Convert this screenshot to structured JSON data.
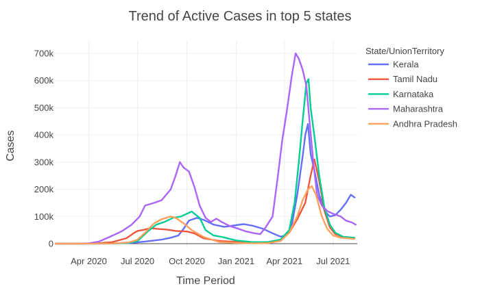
{
  "chart_data": {
    "type": "line",
    "title": "Trend of Active Cases in top 5 states",
    "xlabel": "Time Period",
    "ylabel": "Cases",
    "xlim": [
      "2020-01-30",
      "2021-08-15"
    ],
    "ylim": [
      -15000,
      745000
    ],
    "x_ticks": [
      {
        "date": "2020-04-01",
        "label": "Apr 2020"
      },
      {
        "date": "2020-07-01",
        "label": "Jul 2020"
      },
      {
        "date": "2020-10-01",
        "label": "Oct 2020"
      },
      {
        "date": "2021-01-01",
        "label": "Jan 2021"
      },
      {
        "date": "2021-04-01",
        "label": "Apr 2021"
      },
      {
        "date": "2021-07-01",
        "label": "Jul 2021"
      }
    ],
    "y_ticks": [
      {
        "value": 0,
        "label": "0"
      },
      {
        "value": 100000,
        "label": "100k"
      },
      {
        "value": 200000,
        "label": "200k"
      },
      {
        "value": 300000,
        "label": "300k"
      },
      {
        "value": 400000,
        "label": "400k"
      },
      {
        "value": 500000,
        "label": "500k"
      },
      {
        "value": 600000,
        "label": "600k"
      },
      {
        "value": 700000,
        "label": "700k"
      }
    ],
    "grid": true,
    "legend": {
      "title": "State/UnionTerritory",
      "position": "right"
    },
    "series": [
      {
        "name": "Kerala",
        "color": "#636efa",
        "points": [
          [
            "2020-01-30",
            0
          ],
          [
            "2020-03-15",
            0
          ],
          [
            "2020-05-01",
            300
          ],
          [
            "2020-06-15",
            2000
          ],
          [
            "2020-07-15",
            8000
          ],
          [
            "2020-08-15",
            15000
          ],
          [
            "2020-09-01",
            22000
          ],
          [
            "2020-09-15",
            30000
          ],
          [
            "2020-09-25",
            55000
          ],
          [
            "2020-10-05",
            85000
          ],
          [
            "2020-10-20",
            95000
          ],
          [
            "2020-11-01",
            88000
          ],
          [
            "2020-11-20",
            70000
          ],
          [
            "2020-12-10",
            62000
          ],
          [
            "2021-01-01",
            68000
          ],
          [
            "2021-01-15",
            72000
          ],
          [
            "2021-02-01",
            66000
          ],
          [
            "2021-02-20",
            55000
          ],
          [
            "2021-03-10",
            38000
          ],
          [
            "2021-03-25",
            26000
          ],
          [
            "2021-04-05",
            30000
          ],
          [
            "2021-04-15",
            70000
          ],
          [
            "2021-04-25",
            180000
          ],
          [
            "2021-05-05",
            320000
          ],
          [
            "2021-05-10",
            400000
          ],
          [
            "2021-05-15",
            440000
          ],
          [
            "2021-05-20",
            330000
          ],
          [
            "2021-05-28",
            260000
          ],
          [
            "2021-06-05",
            180000
          ],
          [
            "2021-06-15",
            120000
          ],
          [
            "2021-06-25",
            100000
          ],
          [
            "2021-07-05",
            105000
          ],
          [
            "2021-07-15",
            125000
          ],
          [
            "2021-07-25",
            150000
          ],
          [
            "2021-08-03",
            180000
          ],
          [
            "2021-08-10",
            170000
          ]
        ]
      },
      {
        "name": "Tamil Nadu",
        "color": "#ef553b",
        "points": [
          [
            "2020-01-30",
            0
          ],
          [
            "2020-03-15",
            0
          ],
          [
            "2020-04-15",
            1000
          ],
          [
            "2020-05-15",
            6000
          ],
          [
            "2020-06-10",
            20000
          ],
          [
            "2020-06-25",
            40000
          ],
          [
            "2020-07-01",
            47000
          ],
          [
            "2020-07-10",
            50000
          ],
          [
            "2020-07-25",
            57000
          ],
          [
            "2020-08-10",
            54000
          ],
          [
            "2020-08-25",
            52000
          ],
          [
            "2020-09-10",
            47000
          ],
          [
            "2020-10-01",
            45000
          ],
          [
            "2020-10-15",
            38000
          ],
          [
            "2020-11-01",
            20000
          ],
          [
            "2020-12-01",
            10000
          ],
          [
            "2021-01-01",
            7000
          ],
          [
            "2021-02-01",
            4000
          ],
          [
            "2021-03-01",
            5000
          ],
          [
            "2021-03-25",
            12000
          ],
          [
            "2021-04-10",
            40000
          ],
          [
            "2021-04-25",
            90000
          ],
          [
            "2021-05-10",
            150000
          ],
          [
            "2021-05-20",
            250000
          ],
          [
            "2021-05-27",
            310000
          ],
          [
            "2021-06-05",
            230000
          ],
          [
            "2021-06-15",
            120000
          ],
          [
            "2021-06-25",
            60000
          ],
          [
            "2021-07-05",
            35000
          ],
          [
            "2021-07-20",
            25000
          ],
          [
            "2021-08-10",
            20000
          ]
        ]
      },
      {
        "name": "Karnataka",
        "color": "#00cc96",
        "points": [
          [
            "2020-01-30",
            0
          ],
          [
            "2020-03-15",
            0
          ],
          [
            "2020-05-15",
            500
          ],
          [
            "2020-06-15",
            3000
          ],
          [
            "2020-07-01",
            10000
          ],
          [
            "2020-07-20",
            45000
          ],
          [
            "2020-08-05",
            70000
          ],
          [
            "2020-08-20",
            80000
          ],
          [
            "2020-09-05",
            95000
          ],
          [
            "2020-09-20",
            100000
          ],
          [
            "2020-10-01",
            110000
          ],
          [
            "2020-10-10",
            118000
          ],
          [
            "2020-10-25",
            95000
          ],
          [
            "2020-11-05",
            50000
          ],
          [
            "2020-11-20",
            30000
          ],
          [
            "2020-12-05",
            25000
          ],
          [
            "2021-01-01",
            12000
          ],
          [
            "2021-02-01",
            6000
          ],
          [
            "2021-03-01",
            6000
          ],
          [
            "2021-03-25",
            15000
          ],
          [
            "2021-04-10",
            50000
          ],
          [
            "2021-04-20",
            150000
          ],
          [
            "2021-04-28",
            300000
          ],
          [
            "2021-05-05",
            450000
          ],
          [
            "2021-05-12",
            590000
          ],
          [
            "2021-05-16",
            605000
          ],
          [
            "2021-05-20",
            500000
          ],
          [
            "2021-05-28",
            380000
          ],
          [
            "2021-06-05",
            250000
          ],
          [
            "2021-06-15",
            130000
          ],
          [
            "2021-06-25",
            70000
          ],
          [
            "2021-07-05",
            40000
          ],
          [
            "2021-07-20",
            25000
          ],
          [
            "2021-08-10",
            22000
          ]
        ]
      },
      {
        "name": "Maharashtra",
        "color": "#ab63fa",
        "points": [
          [
            "2020-01-30",
            0
          ],
          [
            "2020-03-15",
            200
          ],
          [
            "2020-04-01",
            1500
          ],
          [
            "2020-04-20",
            8000
          ],
          [
            "2020-05-10",
            25000
          ],
          [
            "2020-06-01",
            45000
          ],
          [
            "2020-06-20",
            70000
          ],
          [
            "2020-07-05",
            100000
          ],
          [
            "2020-07-15",
            140000
          ],
          [
            "2020-08-01",
            150000
          ],
          [
            "2020-08-15",
            160000
          ],
          [
            "2020-09-01",
            200000
          ],
          [
            "2020-09-10",
            250000
          ],
          [
            "2020-09-18",
            300000
          ],
          [
            "2020-09-25",
            280000
          ],
          [
            "2020-10-05",
            265000
          ],
          [
            "2020-10-15",
            210000
          ],
          [
            "2020-10-25",
            140000
          ],
          [
            "2020-11-05",
            95000
          ],
          [
            "2020-11-15",
            80000
          ],
          [
            "2020-11-25",
            92000
          ],
          [
            "2020-12-05",
            80000
          ],
          [
            "2020-12-20",
            65000
          ],
          [
            "2021-01-05",
            55000
          ],
          [
            "2021-01-20",
            45000
          ],
          [
            "2021-02-05",
            38000
          ],
          [
            "2021-02-15",
            35000
          ],
          [
            "2021-02-25",
            60000
          ],
          [
            "2021-03-10",
            100000
          ],
          [
            "2021-03-20",
            250000
          ],
          [
            "2021-03-28",
            380000
          ],
          [
            "2021-04-05",
            480000
          ],
          [
            "2021-04-15",
            620000
          ],
          [
            "2021-04-22",
            700000
          ],
          [
            "2021-04-28",
            680000
          ],
          [
            "2021-05-05",
            640000
          ],
          [
            "2021-05-12",
            580000
          ],
          [
            "2021-05-18",
            450000
          ],
          [
            "2021-05-25",
            300000
          ],
          [
            "2021-06-01",
            180000
          ],
          [
            "2021-06-10",
            140000
          ],
          [
            "2021-06-20",
            120000
          ],
          [
            "2021-07-01",
            110000
          ],
          [
            "2021-07-15",
            100000
          ],
          [
            "2021-07-25",
            85000
          ],
          [
            "2021-08-05",
            78000
          ],
          [
            "2021-08-12",
            70000
          ]
        ]
      },
      {
        "name": "Andhra Pradesh",
        "color": "#ffa15a",
        "points": [
          [
            "2020-01-30",
            0
          ],
          [
            "2020-03-15",
            0
          ],
          [
            "2020-05-15",
            500
          ],
          [
            "2020-06-15",
            5000
          ],
          [
            "2020-07-01",
            15000
          ],
          [
            "2020-07-15",
            40000
          ],
          [
            "2020-08-01",
            75000
          ],
          [
            "2020-08-15",
            90000
          ],
          [
            "2020-09-01",
            100000
          ],
          [
            "2020-09-10",
            95000
          ],
          [
            "2020-09-25",
            75000
          ],
          [
            "2020-10-10",
            50000
          ],
          [
            "2020-11-01",
            25000
          ],
          [
            "2020-12-01",
            6000
          ],
          [
            "2021-01-01",
            3000
          ],
          [
            "2021-02-01",
            1000
          ],
          [
            "2021-03-01",
            2000
          ],
          [
            "2021-03-25",
            10000
          ],
          [
            "2021-04-10",
            40000
          ],
          [
            "2021-04-25",
            100000
          ],
          [
            "2021-05-05",
            160000
          ],
          [
            "2021-05-15",
            200000
          ],
          [
            "2021-05-22",
            212000
          ],
          [
            "2021-05-30",
            180000
          ],
          [
            "2021-06-10",
            100000
          ],
          [
            "2021-06-20",
            55000
          ],
          [
            "2021-07-01",
            30000
          ],
          [
            "2021-07-15",
            22000
          ],
          [
            "2021-08-10",
            18000
          ]
        ]
      }
    ]
  }
}
